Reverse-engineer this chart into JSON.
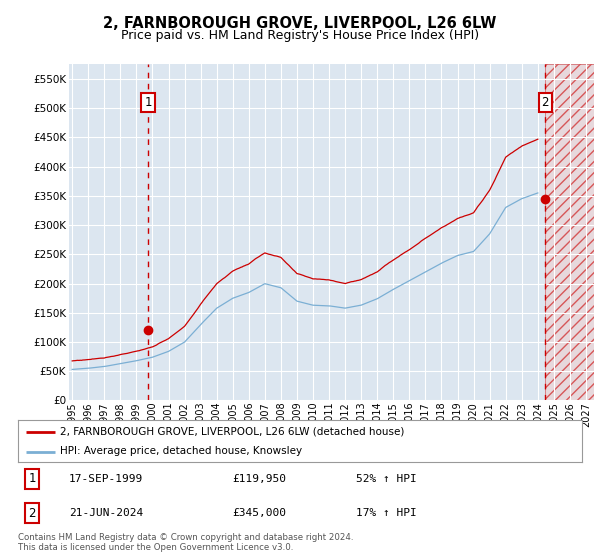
{
  "title": "2, FARNBOROUGH GROVE, LIVERPOOL, L26 6LW",
  "subtitle": "Price paid vs. HM Land Registry's House Price Index (HPI)",
  "title_fontsize": 10.5,
  "subtitle_fontsize": 9,
  "ylabel_ticks": [
    0,
    50000,
    100000,
    150000,
    200000,
    250000,
    300000,
    350000,
    400000,
    450000,
    500000,
    550000
  ],
  "ylim": [
    0,
    575000
  ],
  "xlim_start": 1994.8,
  "xlim_end": 2027.5,
  "plot_bg_color": "#dce6f0",
  "hatch_color": "#cc0000",
  "grid_color": "#ffffff",
  "red_line_color": "#cc0000",
  "blue_line_color": "#7bafd4",
  "marker1_date": 1999.72,
  "marker1_price": 119950,
  "marker2_date": 2024.47,
  "marker2_price": 345000,
  "hatch_start": 2024.47,
  "legend_label1": "2, FARNBOROUGH GROVE, LIVERPOOL, L26 6LW (detached house)",
  "legend_label2": "HPI: Average price, detached house, Knowsley",
  "transaction1_label": "1",
  "transaction1_date_str": "17-SEP-1999",
  "transaction1_price_str": "£119,950",
  "transaction1_hpi_str": "52% ↑ HPI",
  "transaction2_label": "2",
  "transaction2_date_str": "21-JUN-2024",
  "transaction2_price_str": "£345,000",
  "transaction2_hpi_str": "17% ↑ HPI",
  "footer_line1": "Contains HM Land Registry data © Crown copyright and database right 2024.",
  "footer_line2": "This data is licensed under the Open Government Licence v3.0."
}
